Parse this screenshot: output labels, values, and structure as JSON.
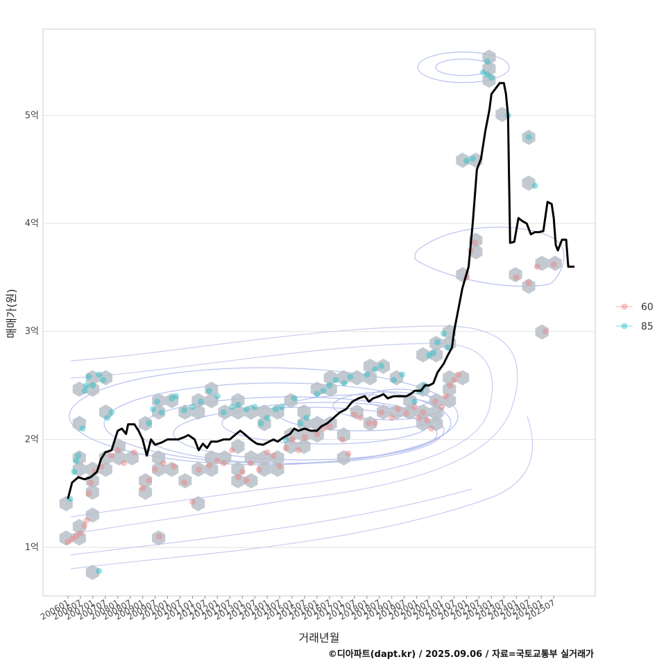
{
  "chart_data": {
    "type": "scatter",
    "xlabel": "거래년월",
    "ylabel": "매매가(원)",
    "caption": "©디아파트(dapt.kr) / 2025.09.06 / 자료=국토교통부 실거래가",
    "y_unit_label": "억",
    "ylim": [
      0.55,
      5.8
    ],
    "xlim": [
      "2005-01",
      "2027-03"
    ],
    "y_ticks": [
      {
        "value": 1,
        "label": "1억"
      },
      {
        "value": 2,
        "label": "2억"
      },
      {
        "value": 3,
        "label": "3억"
      },
      {
        "value": 4,
        "label": "4억"
      },
      {
        "value": 5,
        "label": "5억"
      }
    ],
    "x_ticks": [
      "200601",
      "200607",
      "200701",
      "200707",
      "200801",
      "200807",
      "200901",
      "200907",
      "201001",
      "201007",
      "201101",
      "201107",
      "201201",
      "201207",
      "201301",
      "201307",
      "201401",
      "201407",
      "201501",
      "201507",
      "201601",
      "201607",
      "201701",
      "201707",
      "201801",
      "201807",
      "201901",
      "201907",
      "202001",
      "202007",
      "202101",
      "202107",
      "202201",
      "202207",
      "202301",
      "202307",
      "202401",
      "202407",
      "202501",
      "202507"
    ],
    "legend": [
      {
        "label": "60",
        "color": "#f08080"
      },
      {
        "label": "85",
        "color": "#20c0c8"
      }
    ],
    "series": [
      {
        "name": "60",
        "color": "#f08080",
        "points": [
          [
            "2006-01",
            1.05
          ],
          [
            "2006-03",
            1.08
          ],
          [
            "2006-05",
            1.1
          ],
          [
            "2006-07",
            1.13
          ],
          [
            "2006-09",
            1.2
          ],
          [
            "2006-10",
            1.25
          ],
          [
            "2006-11",
            1.5
          ],
          [
            "2006-12",
            1.6
          ],
          [
            "2007-02",
            1.7
          ],
          [
            "2007-05",
            1.75
          ],
          [
            "2007-10",
            1.85
          ],
          [
            "2008-01",
            1.9
          ],
          [
            "2008-04",
            1.78
          ],
          [
            "2008-09",
            1.88
          ],
          [
            "2009-01",
            1.55
          ],
          [
            "2009-04",
            1.62
          ],
          [
            "2009-07",
            1.72
          ],
          [
            "2009-09",
            1.1
          ],
          [
            "2009-11",
            1.78
          ],
          [
            "2010-04",
            1.75
          ],
          [
            "2010-09",
            1.6
          ],
          [
            "2011-01",
            1.42
          ],
          [
            "2011-04",
            1.72
          ],
          [
            "2011-09",
            1.76
          ],
          [
            "2012-01",
            1.8
          ],
          [
            "2012-04",
            1.78
          ],
          [
            "2012-08",
            1.9
          ],
          [
            "2012-11",
            1.65
          ],
          [
            "2013-01",
            1.7
          ],
          [
            "2013-03",
            1.62
          ],
          [
            "2013-05",
            1.78
          ],
          [
            "2013-09",
            1.72
          ],
          [
            "2014-01",
            1.88
          ],
          [
            "2014-04",
            1.85
          ],
          [
            "2014-07",
            1.75
          ],
          [
            "2014-10",
            1.92
          ],
          [
            "2015-01",
            2.0
          ],
          [
            "2015-04",
            1.9
          ],
          [
            "2015-07",
            2.02
          ],
          [
            "2016-01",
            2.05
          ],
          [
            "2016-04",
            2.1
          ],
          [
            "2016-07",
            2.12
          ],
          [
            "2017-01",
            2.0
          ],
          [
            "2017-04",
            1.87
          ],
          [
            "2017-07",
            2.23
          ],
          [
            "2017-10",
            2.2
          ],
          [
            "2018-02",
            2.15
          ],
          [
            "2018-05",
            2.15
          ],
          [
            "2018-08",
            2.25
          ],
          [
            "2019-01",
            2.2
          ],
          [
            "2019-04",
            2.28
          ],
          [
            "2019-08",
            2.24
          ],
          [
            "2019-12",
            2.3
          ],
          [
            "2020-02",
            2.2
          ],
          [
            "2020-04",
            2.25
          ],
          [
            "2020-06",
            2.18
          ],
          [
            "2020-08",
            2.1
          ],
          [
            "2020-10",
            2.35
          ],
          [
            "2021-01",
            2.3
          ],
          [
            "2021-03",
            2.4
          ],
          [
            "2021-05",
            2.5
          ],
          [
            "2021-07",
            2.55
          ],
          [
            "2021-09",
            2.6
          ],
          [
            "2022-01",
            3.5
          ],
          [
            "2022-03",
            3.75
          ],
          [
            "2022-05",
            3.82
          ],
          [
            "2024-01",
            3.5
          ],
          [
            "2024-07",
            3.45
          ],
          [
            "2024-11",
            3.6
          ],
          [
            "2025-03",
            3.0
          ],
          [
            "2025-07",
            3.62
          ]
        ]
      },
      {
        "name": "85",
        "color": "#20c0c8",
        "points": [
          [
            "2006-02",
            1.45
          ],
          [
            "2006-04",
            1.7
          ],
          [
            "2006-05",
            1.8
          ],
          [
            "2006-06",
            1.85
          ],
          [
            "2006-08",
            2.1
          ],
          [
            "2006-09",
            2.45
          ],
          [
            "2006-10",
            2.5
          ],
          [
            "2006-11",
            2.58
          ],
          [
            "2007-01",
            2.5
          ],
          [
            "2007-04",
            2.6
          ],
          [
            "2007-06",
            2.55
          ],
          [
            "2007-08",
            2.2
          ],
          [
            "2007-10",
            2.25
          ],
          [
            "2007-04",
            0.78
          ],
          [
            "2009-04",
            2.15
          ],
          [
            "2009-06",
            2.28
          ],
          [
            "2009-08",
            2.35
          ],
          [
            "2009-10",
            2.25
          ],
          [
            "2010-03",
            2.38
          ],
          [
            "2010-05",
            2.4
          ],
          [
            "2010-09",
            2.27
          ],
          [
            "2011-01",
            2.3
          ],
          [
            "2011-05",
            2.35
          ],
          [
            "2011-09",
            2.45
          ],
          [
            "2012-01",
            2.4
          ],
          [
            "2012-04",
            2.25
          ],
          [
            "2012-08",
            2.3
          ],
          [
            "2012-11",
            2.32
          ],
          [
            "2013-03",
            2.28
          ],
          [
            "2013-07",
            2.3
          ],
          [
            "2013-10",
            2.15
          ],
          [
            "2014-01",
            2.2
          ],
          [
            "2014-05",
            2.28
          ],
          [
            "2014-08",
            2.3
          ],
          [
            "2014-10",
            2.0
          ],
          [
            "2015-02",
            2.38
          ],
          [
            "2015-05",
            2.15
          ],
          [
            "2015-08",
            2.2
          ],
          [
            "2016-01",
            2.42
          ],
          [
            "2016-04",
            2.45
          ],
          [
            "2016-07",
            2.5
          ],
          [
            "2016-10",
            2.55
          ],
          [
            "2017-02",
            2.52
          ],
          [
            "2017-05",
            2.58
          ],
          [
            "2018-01",
            2.6
          ],
          [
            "2018-05",
            2.65
          ],
          [
            "2018-08",
            2.68
          ],
          [
            "2019-02",
            2.55
          ],
          [
            "2019-06",
            2.6
          ],
          [
            "2019-12",
            2.35
          ],
          [
            "2020-03",
            2.45
          ],
          [
            "2020-05",
            2.5
          ],
          [
            "2020-07",
            2.78
          ],
          [
            "2020-09",
            2.8
          ],
          [
            "2020-11",
            2.9
          ],
          [
            "2021-02",
            2.98
          ],
          [
            "2021-04",
            2.85
          ],
          [
            "2022-01",
            4.58
          ],
          [
            "2022-04",
            4.6
          ],
          [
            "2022-09",
            5.4
          ],
          [
            "2022-11",
            5.38
          ],
          [
            "2023-01",
            5.35
          ],
          [
            "2022-11",
            5.5
          ],
          [
            "2023-09",
            5.0
          ],
          [
            "2024-07",
            4.8
          ],
          [
            "2024-10",
            4.35
          ]
        ]
      }
    ],
    "trend_line": {
      "name": "median",
      "color": "#000000",
      "points": [
        [
          "2006-01",
          1.45
        ],
        [
          "2006-03",
          1.6
        ],
        [
          "2006-06",
          1.65
        ],
        [
          "2006-09",
          1.63
        ],
        [
          "2006-12",
          1.65
        ],
        [
          "2007-03",
          1.7
        ],
        [
          "2007-05",
          1.82
        ],
        [
          "2007-07",
          1.88
        ],
        [
          "2007-10",
          1.9
        ],
        [
          "2008-01",
          2.08
        ],
        [
          "2008-03",
          2.1
        ],
        [
          "2008-05",
          2.05
        ],
        [
          "2008-06",
          2.14
        ],
        [
          "2008-09",
          2.14
        ],
        [
          "2008-11",
          2.08
        ],
        [
          "2009-01",
          2.0
        ],
        [
          "2009-03",
          1.85
        ],
        [
          "2009-05",
          2.0
        ],
        [
          "2009-07",
          1.95
        ],
        [
          "2009-10",
          1.97
        ],
        [
          "2010-01",
          2.0
        ],
        [
          "2010-03",
          2.0
        ],
        [
          "2010-06",
          2.0
        ],
        [
          "2010-09",
          2.02
        ],
        [
          "2010-11",
          2.04
        ],
        [
          "2011-02",
          2.0
        ],
        [
          "2011-04",
          1.9
        ],
        [
          "2011-06",
          1.96
        ],
        [
          "2011-08",
          1.92
        ],
        [
          "2011-10",
          1.98
        ],
        [
          "2012-01",
          1.98
        ],
        [
          "2012-04",
          2.0
        ],
        [
          "2012-07",
          2.0
        ],
        [
          "2012-10",
          2.05
        ],
        [
          "2012-12",
          2.08
        ],
        [
          "2013-02",
          2.05
        ],
        [
          "2013-05",
          2.0
        ],
        [
          "2013-08",
          1.96
        ],
        [
          "2013-11",
          1.95
        ],
        [
          "2014-02",
          1.98
        ],
        [
          "2014-04",
          2.0
        ],
        [
          "2014-06",
          1.98
        ],
        [
          "2014-09",
          2.02
        ],
        [
          "2014-12",
          2.05
        ],
        [
          "2015-02",
          2.1
        ],
        [
          "2015-04",
          2.08
        ],
        [
          "2015-07",
          2.1
        ],
        [
          "2015-10",
          2.08
        ],
        [
          "2016-01",
          2.08
        ],
        [
          "2016-03",
          2.12
        ],
        [
          "2016-06",
          2.15
        ],
        [
          "2016-09",
          2.2
        ],
        [
          "2016-12",
          2.25
        ],
        [
          "2017-03",
          2.28
        ],
        [
          "2017-06",
          2.35
        ],
        [
          "2017-09",
          2.38
        ],
        [
          "2017-12",
          2.4
        ],
        [
          "2018-02",
          2.35
        ],
        [
          "2018-04",
          2.38
        ],
        [
          "2018-07",
          2.4
        ],
        [
          "2018-09",
          2.42
        ],
        [
          "2018-11",
          2.38
        ],
        [
          "2019-02",
          2.4
        ],
        [
          "2019-05",
          2.4
        ],
        [
          "2019-08",
          2.4
        ],
        [
          "2019-10",
          2.42
        ],
        [
          "2019-12",
          2.45
        ],
        [
          "2020-03",
          2.45
        ],
        [
          "2020-05",
          2.5
        ],
        [
          "2020-07",
          2.5
        ],
        [
          "2020-09",
          2.52
        ],
        [
          "2020-11",
          2.62
        ],
        [
          "2021-02",
          2.7
        ],
        [
          "2021-04",
          2.78
        ],
        [
          "2021-06",
          2.85
        ],
        [
          "2021-07",
          3.0
        ],
        [
          "2021-09",
          3.2
        ],
        [
          "2021-11",
          3.4
        ],
        [
          "2022-02",
          3.6
        ],
        [
          "2022-04",
          4.0
        ],
        [
          "2022-06",
          4.5
        ],
        [
          "2022-08",
          4.6
        ],
        [
          "2022-10",
          4.85
        ],
        [
          "2022-12",
          5.05
        ],
        [
          "2023-01",
          5.2
        ],
        [
          "2023-03",
          5.25
        ],
        [
          "2023-05",
          5.3
        ],
        [
          "2023-07",
          5.3
        ],
        [
          "2023-08",
          5.2
        ],
        [
          "2023-09",
          5.0
        ],
        [
          "2023-10",
          3.82
        ],
        [
          "2023-12",
          3.83
        ],
        [
          "2024-02",
          4.05
        ],
        [
          "2024-04",
          4.02
        ],
        [
          "2024-06",
          4.0
        ],
        [
          "2024-08",
          3.9
        ],
        [
          "2024-10",
          3.92
        ],
        [
          "2024-12",
          3.92
        ],
        [
          "2025-02",
          3.93
        ],
        [
          "2025-04",
          4.2
        ],
        [
          "2025-06",
          4.18
        ],
        [
          "2025-07",
          4.05
        ],
        [
          "2025-08",
          3.8
        ],
        [
          "2025-09",
          3.75
        ],
        [
          "2025-11",
          3.85
        ],
        [
          "2026-01",
          3.85
        ],
        [
          "2026-02",
          3.6
        ],
        [
          "2026-05",
          3.6
        ]
      ]
    }
  }
}
